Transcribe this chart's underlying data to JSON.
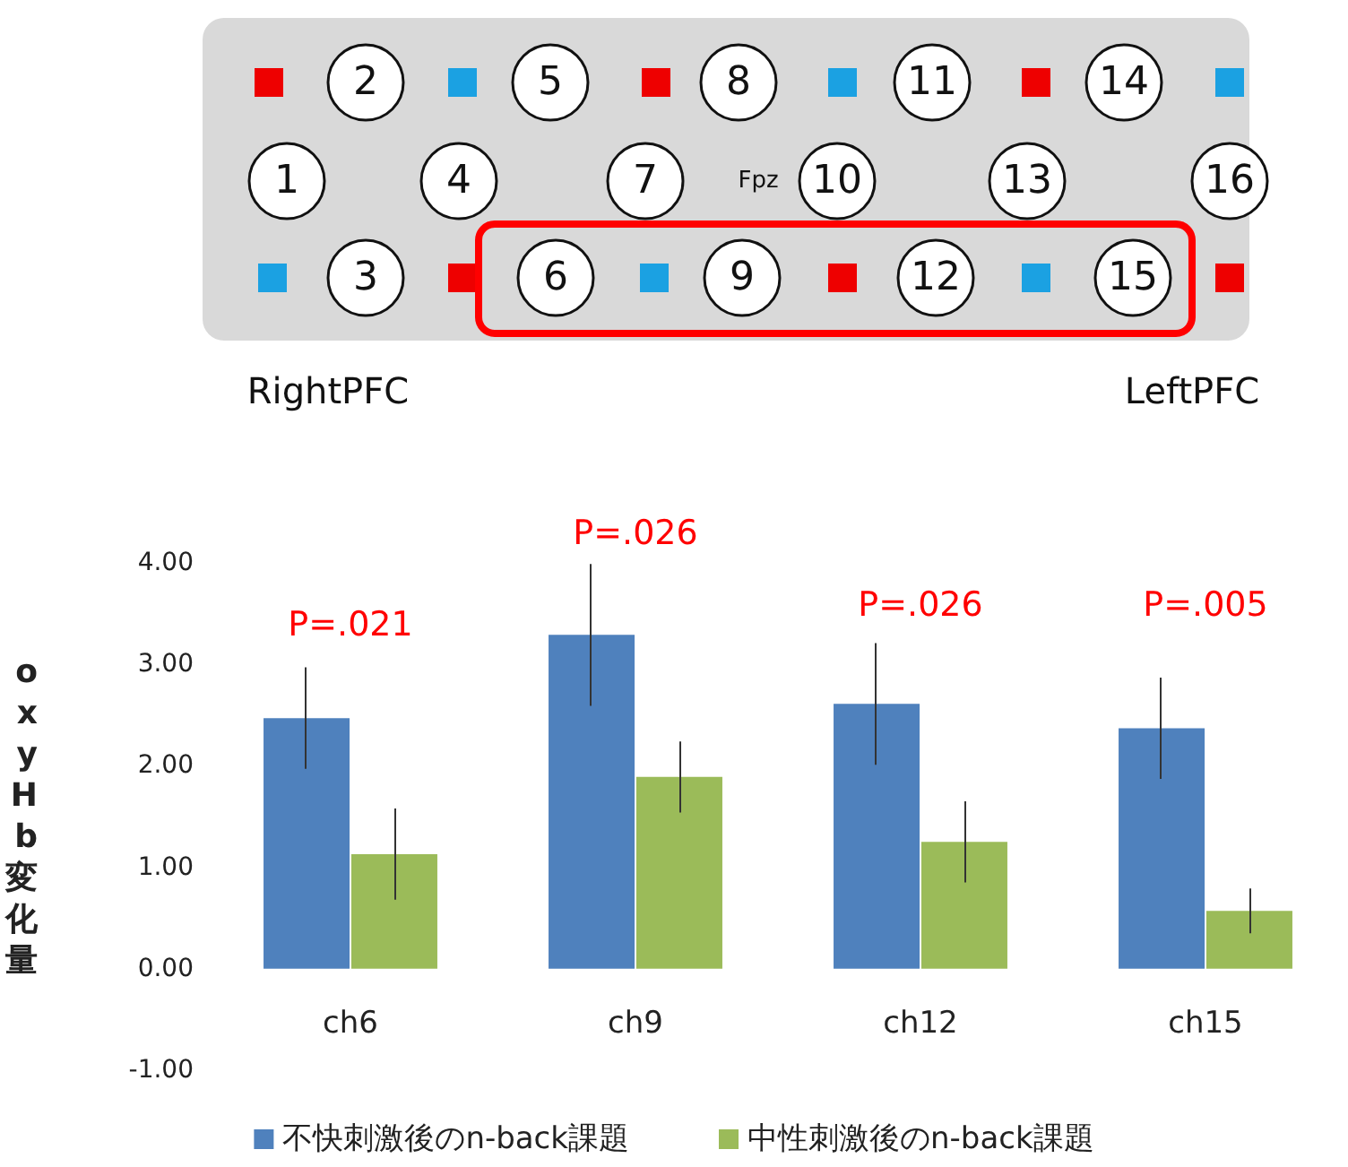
{
  "chart_data": {
    "type": "bar",
    "ylabel": "oxyHb変化量",
    "categories": [
      "ch6",
      "ch9",
      "ch12",
      "ch15"
    ],
    "series": [
      {
        "name": "不快刺激後のn-back課題",
        "color": "#4f81bd",
        "values": [
          2.47,
          3.29,
          2.61,
          2.37
        ],
        "errors": [
          0.5,
          0.7,
          0.6,
          0.5
        ]
      },
      {
        "name": "中性刺激後のn-back課題",
        "color": "#9bbb59",
        "values": [
          1.13,
          1.89,
          1.25,
          0.57
        ],
        "errors": [
          0.45,
          0.35,
          0.4,
          0.22
        ]
      }
    ],
    "ylim": [
      -1,
      4
    ],
    "yticks": [
      {
        "value": -1,
        "label": "-1.00"
      },
      {
        "value": 0,
        "label": "0.00"
      },
      {
        "value": 1,
        "label": "1.00"
      },
      {
        "value": 2,
        "label": "2.00"
      },
      {
        "value": 3,
        "label": "3.00"
      },
      {
        "value": 4,
        "label": "4.00"
      }
    ],
    "grid": false,
    "legend": "bottom",
    "annotations": [
      "P=.021",
      "P=.026",
      "P=.026",
      "P=.005",
      "2",
      "5",
      "8",
      "11",
      "14",
      "1",
      "4",
      "7",
      "Fpz",
      "10",
      "13",
      "16",
      "3",
      "6",
      "9",
      "12",
      "15",
      "RightPFC",
      "LeftPFC"
    ]
  }
}
